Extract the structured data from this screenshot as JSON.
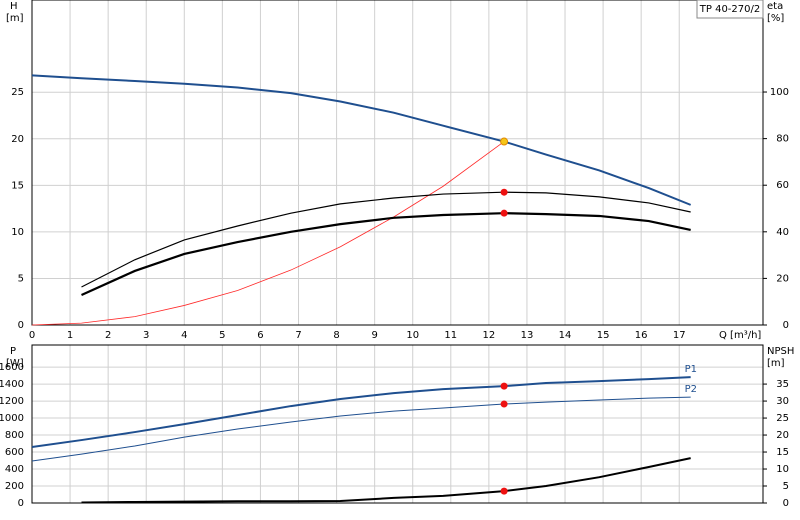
{
  "chart_data": [
    {
      "type": "line",
      "title": "TP 40-270/2",
      "ylabel": "H",
      "yunit": "[m]",
      "y2label": "eta",
      "y2unit": "[%]",
      "xlabel": "Q [m³/h]",
      "xlim": [
        0,
        19.2
      ],
      "xticks": [
        0,
        1,
        2,
        3,
        4,
        5,
        6,
        7,
        8,
        9,
        10,
        11,
        12,
        13,
        14,
        15,
        16,
        17
      ],
      "ylim": [
        0,
        34.9
      ],
      "yticks": [
        0,
        5,
        10,
        15,
        20,
        25
      ],
      "y2lim": [
        0,
        139.5
      ],
      "y2ticks": [
        0,
        20,
        40,
        60,
        80,
        100
      ],
      "grid": true,
      "series": [
        {
          "color": "#1f4f8f",
          "width": 2,
          "axis": "y",
          "x": [
            0,
            1.3,
            2.7,
            4,
            5.4,
            6.8,
            8.1,
            9.5,
            10.8,
            12.4,
            13.5,
            14.9,
            16.2,
            17.3
          ],
          "values": [
            26.8,
            26.5,
            26.2,
            25.9,
            25.5,
            24.9,
            24,
            22.8,
            21.4,
            19.7,
            18.3,
            16.6,
            14.7,
            12.9
          ]
        },
        {
          "color": "#ff2a2a",
          "width": 0.8,
          "axis": "y",
          "x": [
            0,
            1.3,
            2.7,
            4,
            5.4,
            6.8,
            8.1,
            9.5,
            10.8,
            12.4
          ],
          "values": [
            0,
            0.2,
            0.9,
            2.1,
            3.7,
            5.9,
            8.4,
            11.6,
            14.9,
            19.7
          ]
        },
        {
          "color": "#000000",
          "width": 1.2,
          "axis": "y2",
          "x": [
            1.3,
            2.7,
            4,
            5.4,
            6.8,
            8.1,
            9.5,
            10.8,
            12.4,
            13.5,
            14.9,
            16.2,
            17.3
          ],
          "values": [
            16.3,
            28,
            36.5,
            42.5,
            48,
            52,
            54.5,
            56.2,
            57,
            56.7,
            55,
            52.4,
            48.5
          ]
        },
        {
          "color": "#000000",
          "width": 2.2,
          "axis": "y2",
          "x": [
            1.3,
            2.7,
            4,
            5.4,
            6.8,
            8.1,
            9.5,
            10.8,
            12.4,
            13.5,
            14.9,
            16.2,
            17.3
          ],
          "values": [
            12.9,
            23.2,
            30.5,
            35.6,
            40,
            43.3,
            46,
            47.2,
            48,
            47.6,
            46.8,
            44.6,
            40.8
          ]
        }
      ],
      "markers": [
        {
          "x": 12.4,
          "y": 19.7,
          "axis": "y",
          "color": "#f5c518"
        },
        {
          "x": 12.4,
          "y": 57,
          "axis": "y2",
          "color": "#ee1111"
        },
        {
          "x": 12.4,
          "y": 48,
          "axis": "y2",
          "color": "#ee1111"
        }
      ]
    },
    {
      "type": "line",
      "ylabel": "P",
      "yunit": "[W]",
      "y2label": "NPSH",
      "y2unit": "[m]",
      "xlim": [
        0,
        19.2
      ],
      "xticks": [
        0,
        1,
        2,
        3,
        4,
        5,
        6,
        7,
        8,
        9,
        10,
        11,
        12,
        13,
        14,
        15,
        16,
        17
      ],
      "ylim": [
        0,
        1860
      ],
      "yticks": [
        0,
        200,
        400,
        600,
        800,
        1000,
        1200,
        1400,
        1600
      ],
      "y2lim": [
        0,
        46.5
      ],
      "y2ticks": [
        0,
        5,
        10,
        15,
        20,
        25,
        30,
        35
      ],
      "grid": true,
      "series": [
        {
          "name": "P1",
          "color": "#1f4f8f",
          "width": 2,
          "axis": "y",
          "x": [
            0,
            1.3,
            2.7,
            4,
            5.4,
            6.8,
            8.1,
            9.5,
            10.8,
            12.4,
            13.5,
            14.9,
            16.2,
            17.3
          ],
          "values": [
            659,
            741,
            835,
            929,
            1035,
            1141,
            1224,
            1294,
            1341,
            1376,
            1412,
            1435,
            1459,
            1482
          ]
        },
        {
          "name": "P2",
          "color": "#1f4f8f",
          "width": 1,
          "axis": "y",
          "x": [
            0,
            1.3,
            2.7,
            4,
            5.4,
            6.8,
            8.1,
            9.5,
            10.8,
            12.4,
            13.5,
            14.9,
            16.2,
            17.3
          ],
          "values": [
            494,
            576,
            671,
            776,
            871,
            953,
            1024,
            1082,
            1118,
            1165,
            1188,
            1212,
            1235,
            1247
          ]
        },
        {
          "color": "#000000",
          "width": 2,
          "axis": "y2",
          "x": [
            1.3,
            2.7,
            4,
            5.4,
            6.8,
            8.1,
            9.5,
            10.8,
            12.4,
            13.5,
            14.9,
            16.2,
            17.3
          ],
          "values": [
            0.15,
            0.3,
            0.4,
            0.5,
            0.5,
            0.6,
            1.5,
            2.1,
            3.5,
            5,
            7.6,
            10.6,
            13.2
          ]
        }
      ],
      "markers": [
        {
          "x": 12.4,
          "y": 1376,
          "axis": "y",
          "color": "#ee1111"
        },
        {
          "x": 12.4,
          "y": 1165,
          "axis": "y",
          "color": "#ee1111"
        },
        {
          "x": 12.4,
          "y": 3.5,
          "axis": "y2",
          "color": "#ee1111"
        }
      ]
    }
  ]
}
